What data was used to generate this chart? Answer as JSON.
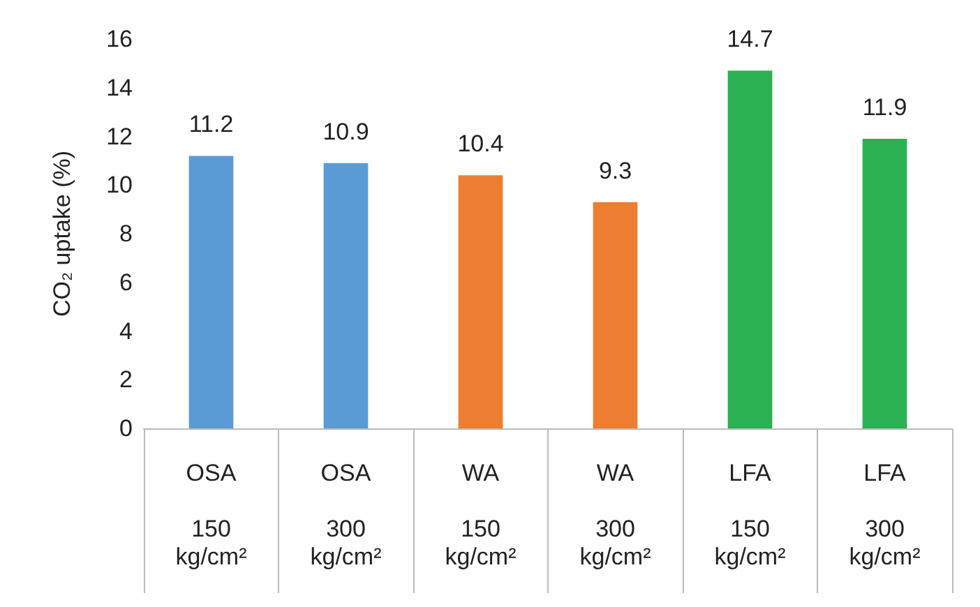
{
  "chart_data": {
    "type": "bar",
    "ylabel": "CO₂ uptake (%)",
    "categories": [
      "OSA\n\n150\nkg/cm²",
      "OSA\n\n300\nkg/cm²",
      "WA\n\n150\nkg/cm²",
      "WA\n\n300\nkg/cm²",
      "LFA\n\n150\nkg/cm²",
      "LFA\n\n300\nkg/cm²"
    ],
    "values": [
      11.2,
      10.9,
      10.4,
      9.3,
      14.7,
      11.9
    ],
    "colors": [
      "#5b9bd5",
      "#5b9bd5",
      "#ed7d31",
      "#ed7d31",
      "#2bb052",
      "#2bb052"
    ],
    "ylim": [
      0,
      16
    ],
    "yticks": [
      0,
      2,
      4,
      6,
      8,
      10,
      12,
      14,
      16
    ],
    "data_labels": true,
    "grid": false
  }
}
